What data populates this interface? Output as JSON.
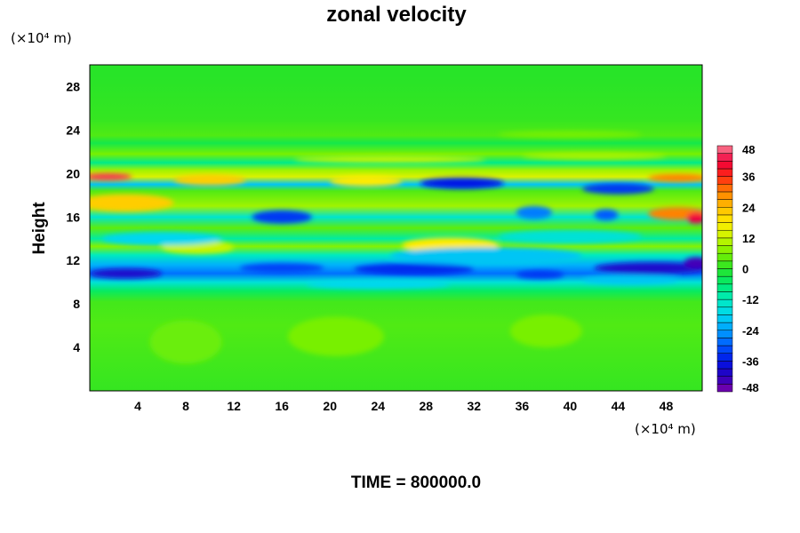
{
  "chart_data": {
    "type": "heatmap",
    "title": "zonal velocity",
    "xlabel": "",
    "ylabel": "Height",
    "x_unit": "(×10⁴ m)",
    "y_unit": "(×10⁴ m)",
    "xlim": [
      0,
      51
    ],
    "ylim": [
      0,
      30
    ],
    "x_ticks": [
      4,
      8,
      12,
      16,
      20,
      24,
      28,
      32,
      36,
      40,
      44,
      48
    ],
    "y_ticks": [
      4,
      8,
      12,
      16,
      20,
      24,
      28
    ],
    "colorbar": {
      "ticks": [
        48,
        36,
        24,
        12,
        0,
        -12,
        -24,
        -36,
        -48
      ],
      "range": [
        -48,
        48
      ],
      "step": 3,
      "placement": "right"
    },
    "footer": "TIME = 800000.0",
    "bands": [
      {
        "y": 29.0,
        "value": 0
      },
      {
        "y": 25.0,
        "value": 1
      },
      {
        "y": 23.5,
        "value": 3
      },
      {
        "y": 22.8,
        "value": -3
      },
      {
        "y": 21.8,
        "value": 6
      },
      {
        "y": 21.0,
        "value": -8
      },
      {
        "y": 20.3,
        "value": 9
      },
      {
        "y": 19.7,
        "value": 14
      },
      {
        "y": 19.0,
        "value": -20
      },
      {
        "y": 18.4,
        "value": 3
      },
      {
        "y": 17.0,
        "value": 9
      },
      {
        "y": 16.0,
        "value": -14
      },
      {
        "y": 15.0,
        "value": 4
      },
      {
        "y": 14.0,
        "value": -10
      },
      {
        "y": 13.3,
        "value": 7
      },
      {
        "y": 12.5,
        "value": -12
      },
      {
        "y": 11.6,
        "value": -22
      },
      {
        "y": 10.8,
        "value": -28
      },
      {
        "y": 10.0,
        "value": -15
      },
      {
        "y": 9.2,
        "value": -5
      },
      {
        "y": 8.2,
        "value": 2
      },
      {
        "y": 6.0,
        "value": 3
      },
      {
        "y": 3.0,
        "value": 2
      },
      {
        "y": 0.0,
        "value": 1
      }
    ],
    "blobs": [
      {
        "x": 1.5,
        "y": 19.7,
        "rx": 2.0,
        "ry": 0.3,
        "value": 44
      },
      {
        "x": 49.0,
        "y": 19.6,
        "rx": 2.5,
        "ry": 0.35,
        "value": 30
      },
      {
        "x": 31.0,
        "y": 19.1,
        "rx": 3.5,
        "ry": 0.5,
        "value": -36
      },
      {
        "x": 44.0,
        "y": 18.6,
        "rx": 3.0,
        "ry": 0.5,
        "value": -33
      },
      {
        "x": 3.0,
        "y": 17.3,
        "rx": 4.0,
        "ry": 0.8,
        "value": 22
      },
      {
        "x": 49.0,
        "y": 16.3,
        "rx": 2.5,
        "ry": 0.6,
        "value": 30
      },
      {
        "x": 50.5,
        "y": 15.9,
        "rx": 0.8,
        "ry": 0.5,
        "value": 42
      },
      {
        "x": 16.0,
        "y": 16.0,
        "rx": 2.5,
        "ry": 0.6,
        "value": -33
      },
      {
        "x": 37.0,
        "y": 16.4,
        "rx": 1.5,
        "ry": 0.6,
        "value": -27
      },
      {
        "x": 43.0,
        "y": 16.2,
        "rx": 1.0,
        "ry": 0.5,
        "value": -30
      },
      {
        "x": 10.0,
        "y": 19.4,
        "rx": 3.0,
        "ry": 0.5,
        "value": 22
      },
      {
        "x": 23.0,
        "y": 19.3,
        "rx": 3.0,
        "ry": 0.5,
        "value": 18
      },
      {
        "x": 30.0,
        "y": 13.4,
        "rx": 4.0,
        "ry": 0.7,
        "value": 18
      },
      {
        "x": 9.0,
        "y": 13.2,
        "rx": 3.0,
        "ry": 0.6,
        "value": 12
      },
      {
        "x": 3.0,
        "y": 10.8,
        "rx": 3.0,
        "ry": 0.45,
        "value": -40
      },
      {
        "x": 16.0,
        "y": 11.3,
        "rx": 3.5,
        "ry": 0.45,
        "value": -32
      },
      {
        "x": 27.0,
        "y": 11.2,
        "rx": 5.0,
        "ry": 0.55,
        "value": -34
      },
      {
        "x": 47.0,
        "y": 11.3,
        "rx": 5.0,
        "ry": 0.55,
        "value": -40
      },
      {
        "x": 50.5,
        "y": 11.8,
        "rx": 1.0,
        "ry": 0.5,
        "value": -44
      },
      {
        "x": 37.5,
        "y": 10.7,
        "rx": 2.0,
        "ry": 0.4,
        "value": -33
      },
      {
        "x": 24.0,
        "y": 9.8,
        "rx": 6.0,
        "ry": 0.4,
        "value": -18
      },
      {
        "x": 45.0,
        "y": 10.2,
        "rx": 4.0,
        "ry": 0.4,
        "value": -20
      },
      {
        "x": 20.5,
        "y": 5.0,
        "rx": 4.0,
        "ry": 1.8,
        "value": 6
      },
      {
        "x": 8.0,
        "y": 4.5,
        "rx": 3.0,
        "ry": 2.0,
        "value": 5
      },
      {
        "x": 38.0,
        "y": 5.5,
        "rx": 3.0,
        "ry": 1.5,
        "value": 6
      },
      {
        "x": 25.0,
        "y": 21.3,
        "rx": 8.0,
        "ry": 0.3,
        "value": 12
      },
      {
        "x": 42.0,
        "y": 21.6,
        "rx": 6.0,
        "ry": 0.3,
        "value": 10
      },
      {
        "x": 40.0,
        "y": 23.6,
        "rx": 6.0,
        "ry": 0.3,
        "value": 6
      },
      {
        "x": 33.0,
        "y": 12.4,
        "rx": 8.0,
        "ry": 0.8,
        "value": -20
      },
      {
        "x": 6.0,
        "y": 14.0,
        "rx": 5.0,
        "ry": 0.6,
        "value": -18
      },
      {
        "x": 40.0,
        "y": 14.2,
        "rx": 6.0,
        "ry": 0.6,
        "value": -15
      }
    ]
  }
}
